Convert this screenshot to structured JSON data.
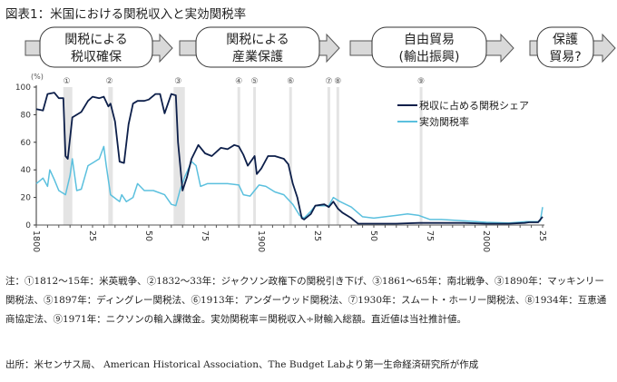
{
  "title": "図表1：米国における関税収入と実効関税率",
  "flow": [
    {
      "line1": "関税による",
      "line2": "税収確保"
    },
    {
      "line1": "関税による",
      "line2": "産業保護"
    },
    {
      "line1": "自由貿易",
      "line2": "(輸出振興)"
    },
    {
      "line1": "保護",
      "line2": "貿易?"
    }
  ],
  "notes": "注：①1812～15年：米英戦争、②1832～33年：ジャクソン政権下の関税引き下げ、③1861～65年：南北戦争、③1890年：マッキンリー関税法、⑤1897年：ディングレー関税法、⑥1913年：アンダーウッド関税法、⑦1930年：スムート・ホーリー関税法、⑧1934年：互恵通商協定法、⑨1971年：ニクソンの輸入課徴金。実効関税率＝関税収入÷財輸入総額。直近値は当社推計値。",
  "source": "出所：米センサス局、 American Historical Association、The Budget Labより第一生命経済研究所が作成",
  "chart_data": {
    "type": "line",
    "ylabel": "(%)",
    "ylim": [
      0,
      100
    ],
    "yticks": [
      0,
      20,
      40,
      60,
      80,
      100
    ],
    "xlim": [
      1800,
      2025
    ],
    "xticks": [
      {
        "v": 1800,
        "label": "1800"
      },
      {
        "v": 1825,
        "label": "25"
      },
      {
        "v": 1850,
        "label": "50"
      },
      {
        "v": 1875,
        "label": "75"
      },
      {
        "v": 1900,
        "label": "1900"
      },
      {
        "v": 1925,
        "label": "25"
      },
      {
        "v": 1950,
        "label": "50"
      },
      {
        "v": 1975,
        "label": "75"
      },
      {
        "v": 2000,
        "label": "2000"
      },
      {
        "v": 2025,
        "label": "25"
      }
    ],
    "legend_position": "top-right",
    "events": [
      {
        "label": "①",
        "start": 1812,
        "end": 1815
      },
      {
        "label": "②",
        "start": 1832,
        "end": 1833
      },
      {
        "label": "③",
        "start": 1861,
        "end": 1865
      },
      {
        "label": "④",
        "start": 1890,
        "end": 1890
      },
      {
        "label": "⑤",
        "start": 1897,
        "end": 1897
      },
      {
        "label": "⑥",
        "start": 1913,
        "end": 1913
      },
      {
        "label": "⑦",
        "start": 1930,
        "end": 1930
      },
      {
        "label": "⑧",
        "start": 1934,
        "end": 1934
      },
      {
        "label": "⑨",
        "start": 1971,
        "end": 1971
      }
    ],
    "series": [
      {
        "name": "税収に占める関税シェア",
        "color": "#0d1f4a",
        "points": [
          [
            1800,
            84
          ],
          [
            1803,
            83
          ],
          [
            1805,
            95
          ],
          [
            1808,
            96
          ],
          [
            1810,
            92
          ],
          [
            1812,
            92
          ],
          [
            1813,
            50
          ],
          [
            1814,
            48
          ],
          [
            1816,
            78
          ],
          [
            1820,
            82
          ],
          [
            1823,
            90
          ],
          [
            1825,
            93
          ],
          [
            1828,
            92
          ],
          [
            1830,
            93
          ],
          [
            1832,
            86
          ],
          [
            1833,
            88
          ],
          [
            1835,
            75
          ],
          [
            1837,
            46
          ],
          [
            1839,
            45
          ],
          [
            1841,
            73
          ],
          [
            1843,
            88
          ],
          [
            1845,
            90
          ],
          [
            1848,
            90
          ],
          [
            1850,
            91
          ],
          [
            1853,
            95
          ],
          [
            1855,
            95
          ],
          [
            1857,
            81
          ],
          [
            1860,
            95
          ],
          [
            1862,
            94
          ],
          [
            1863,
            60
          ],
          [
            1865,
            25
          ],
          [
            1867,
            35
          ],
          [
            1869,
            48
          ],
          [
            1872,
            58
          ],
          [
            1875,
            52
          ],
          [
            1878,
            50
          ],
          [
            1882,
            56
          ],
          [
            1885,
            55
          ],
          [
            1888,
            58
          ],
          [
            1890,
            57
          ],
          [
            1892,
            51
          ],
          [
            1894,
            43
          ],
          [
            1897,
            50
          ],
          [
            1898,
            37
          ],
          [
            1900,
            41
          ],
          [
            1903,
            50
          ],
          [
            1906,
            50
          ],
          [
            1910,
            48
          ],
          [
            1912,
            44
          ],
          [
            1914,
            30
          ],
          [
            1916,
            20
          ],
          [
            1918,
            5
          ],
          [
            1919,
            4
          ],
          [
            1922,
            8
          ],
          [
            1924,
            14
          ],
          [
            1928,
            15
          ],
          [
            1930,
            13
          ],
          [
            1932,
            17
          ],
          [
            1934,
            12
          ],
          [
            1936,
            9
          ],
          [
            1940,
            5
          ],
          [
            1943,
            1
          ],
          [
            1950,
            1
          ],
          [
            1960,
            1
          ],
          [
            1970,
            1.5
          ],
          [
            1980,
            1.5
          ],
          [
            1990,
            1.5
          ],
          [
            2000,
            1
          ],
          [
            2010,
            1
          ],
          [
            2017,
            1.5
          ],
          [
            2019,
            2
          ],
          [
            2023,
            2
          ],
          [
            2025,
            6
          ]
        ]
      },
      {
        "name": "実効関税率",
        "color": "#5bc0de",
        "points": [
          [
            1800,
            30
          ],
          [
            1803,
            34
          ],
          [
            1805,
            28
          ],
          [
            1806,
            40
          ],
          [
            1808,
            33
          ],
          [
            1810,
            25
          ],
          [
            1813,
            22
          ],
          [
            1815,
            36
          ],
          [
            1816,
            48
          ],
          [
            1818,
            25
          ],
          [
            1820,
            26
          ],
          [
            1823,
            43
          ],
          [
            1825,
            45
          ],
          [
            1828,
            48
          ],
          [
            1830,
            57
          ],
          [
            1831,
            44
          ],
          [
            1833,
            22
          ],
          [
            1837,
            17
          ],
          [
            1838,
            22
          ],
          [
            1840,
            17
          ],
          [
            1843,
            20
          ],
          [
            1845,
            30
          ],
          [
            1848,
            25
          ],
          [
            1852,
            25
          ],
          [
            1857,
            22
          ],
          [
            1860,
            15
          ],
          [
            1862,
            14
          ],
          [
            1864,
            26
          ],
          [
            1866,
            35
          ],
          [
            1869,
            46
          ],
          [
            1871,
            43
          ],
          [
            1873,
            28
          ],
          [
            1876,
            30
          ],
          [
            1880,
            30
          ],
          [
            1885,
            30
          ],
          [
            1890,
            29
          ],
          [
            1892,
            22
          ],
          [
            1895,
            21
          ],
          [
            1899,
            29
          ],
          [
            1902,
            28
          ],
          [
            1906,
            24
          ],
          [
            1910,
            22
          ],
          [
            1914,
            15
          ],
          [
            1917,
            7
          ],
          [
            1919,
            5
          ],
          [
            1922,
            10
          ],
          [
            1924,
            14
          ],
          [
            1928,
            14
          ],
          [
            1930,
            14
          ],
          [
            1932,
            20
          ],
          [
            1935,
            17
          ],
          [
            1940,
            13
          ],
          [
            1945,
            6
          ],
          [
            1950,
            5
          ],
          [
            1960,
            7
          ],
          [
            1965,
            8
          ],
          [
            1970,
            7
          ],
          [
            1975,
            4
          ],
          [
            1980,
            4
          ],
          [
            1990,
            3
          ],
          [
            2000,
            2
          ],
          [
            2010,
            1.5
          ],
          [
            2018,
            2.5
          ],
          [
            2023,
            2.5
          ],
          [
            2024,
            3
          ],
          [
            2025,
            13
          ]
        ]
      }
    ]
  }
}
